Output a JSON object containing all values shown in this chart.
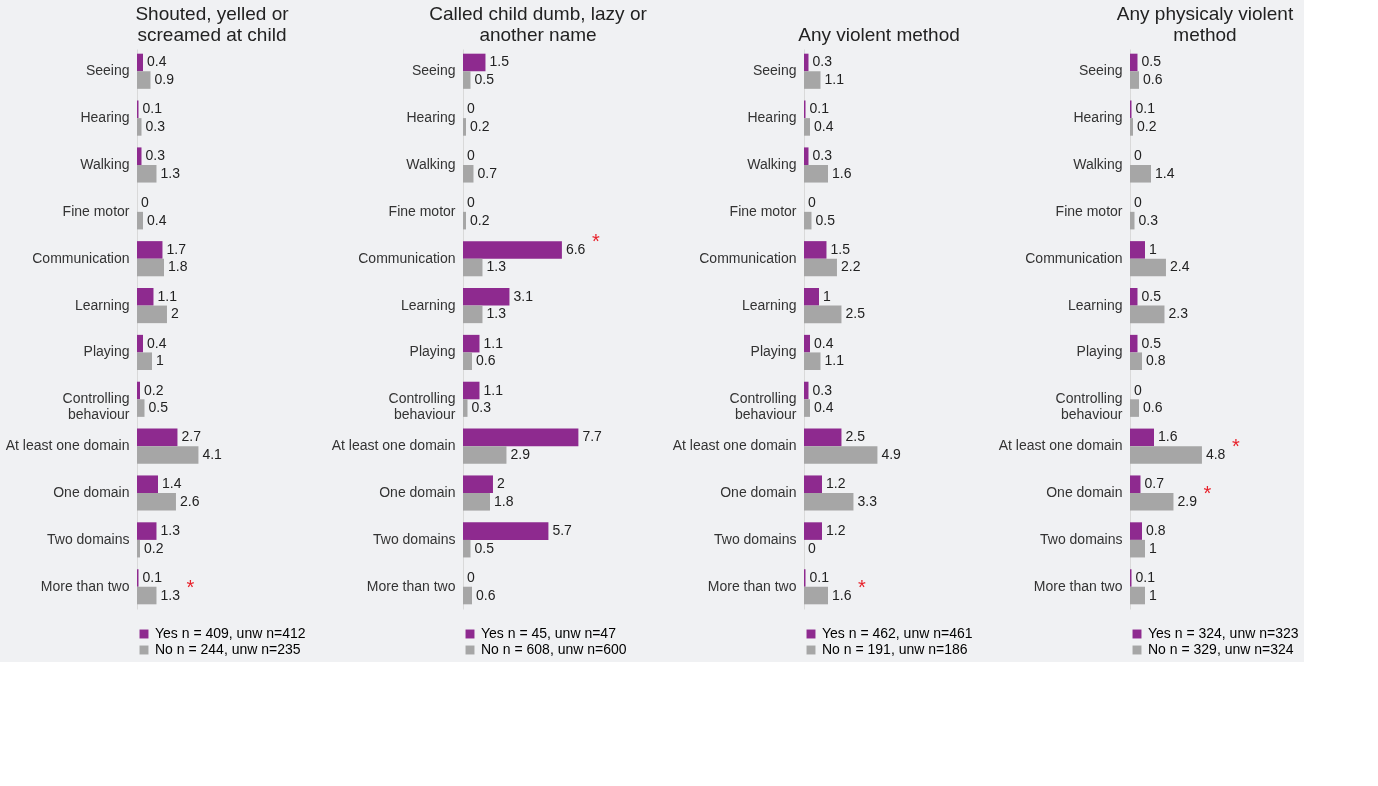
{
  "chart_data": [
    {
      "type": "bar",
      "orientation": "horizontal",
      "title": "Shouted, yelled or screamed at child",
      "data_labels": true,
      "legend": "bottom",
      "categories": [
        "Seeing",
        "Hearing",
        "Walking",
        "Fine motor",
        "Communication",
        "Learning",
        "Playing",
        "Controlling behaviour",
        "At least one domain",
        "One domain",
        "Two domains",
        "More than two"
      ],
      "series": [
        {
          "name": "Yes n = 409, unw n=412",
          "color": "#8e2a8f",
          "values": [
            0.4,
            0.1,
            0.3,
            0,
            1.7,
            1.1,
            0.4,
            0.2,
            2.7,
            1.4,
            1.3,
            0.1
          ]
        },
        {
          "name": "No n = 244, unw n=235",
          "color": "#a6a6a6",
          "values": [
            0.9,
            0.3,
            1.3,
            0.4,
            1.8,
            2,
            1,
            0.5,
            4.1,
            2.6,
            0.2,
            1.3
          ]
        }
      ],
      "annotations": [
        {
          "text": "*",
          "x": 1.3,
          "y": "More than two"
        }
      ]
    },
    {
      "type": "bar",
      "orientation": "horizontal",
      "title": "Called child dumb, lazy or another name",
      "data_labels": true,
      "legend": "bottom",
      "categories": [
        "Seeing",
        "Hearing",
        "Walking",
        "Fine motor",
        "Communication",
        "Learning",
        "Playing",
        "Controlling behaviour",
        "At least one domain",
        "One domain",
        "Two domains",
        "More than two"
      ],
      "series": [
        {
          "name": "Yes n = 45, unw n=47",
          "color": "#8e2a8f",
          "values": [
            1.5,
            0,
            0,
            0,
            6.6,
            3.1,
            1.1,
            1.1,
            7.7,
            2,
            5.7,
            0
          ]
        },
        {
          "name": "No n = 608, unw n=600",
          "color": "#a6a6a6",
          "values": [
            0.5,
            0.2,
            0.7,
            0.2,
            1.3,
            1.3,
            0.6,
            0.3,
            2.9,
            1.8,
            0.5,
            0.6
          ]
        }
      ],
      "annotations": [
        {
          "text": "*",
          "x": 6.6,
          "y": "Communication"
        }
      ]
    },
    {
      "type": "bar",
      "orientation": "horizontal",
      "title": "Any violent method",
      "data_labels": true,
      "legend": "bottom",
      "categories": [
        "Seeing",
        "Hearing",
        "Walking",
        "Fine motor",
        "Communication",
        "Learning",
        "Playing",
        "Controlling behaviour",
        "At least one domain",
        "One domain",
        "Two domains",
        "More than two"
      ],
      "series": [
        {
          "name": "Yes n = 462, unw n=461",
          "color": "#8e2a8f",
          "values": [
            0.3,
            0.1,
            0.3,
            0,
            1.5,
            1,
            0.4,
            0.3,
            2.5,
            1.2,
            1.2,
            0.1
          ]
        },
        {
          "name": "No n = 191, unw n=186",
          "color": "#a6a6a6",
          "values": [
            1.1,
            0.4,
            1.6,
            0.5,
            2.2,
            2.5,
            1.1,
            0.4,
            4.9,
            3.3,
            0,
            1.6
          ]
        }
      ],
      "annotations": [
        {
          "text": "*",
          "x": 1.6,
          "y": "More than two"
        }
      ]
    },
    {
      "type": "bar",
      "orientation": "horizontal",
      "title": "Any physicaly violent method",
      "data_labels": true,
      "legend": "bottom",
      "categories": [
        "Seeing",
        "Hearing",
        "Walking",
        "Fine motor",
        "Communication",
        "Learning",
        "Playing",
        "Controlling behaviour",
        "At least one domain",
        "One domain",
        "Two domains",
        "More than two"
      ],
      "series": [
        {
          "name": "Yes n = 324, unw n=323",
          "color": "#8e2a8f",
          "values": [
            0.5,
            0.1,
            0,
            0,
            1,
            0.5,
            0.5,
            0,
            1.6,
            0.7,
            0.8,
            0.1
          ]
        },
        {
          "name": "No n = 329, unw n=324",
          "color": "#a6a6a6",
          "values": [
            0.6,
            0.2,
            1.4,
            0.3,
            2.4,
            2.3,
            0.8,
            0.6,
            4.8,
            2.9,
            1,
            1
          ]
        }
      ],
      "annotations": [
        {
          "text": "*",
          "x": 4.8,
          "y": "At least one domain"
        },
        {
          "text": "*",
          "x": 2.9,
          "y": "One domain"
        }
      ]
    }
  ]
}
